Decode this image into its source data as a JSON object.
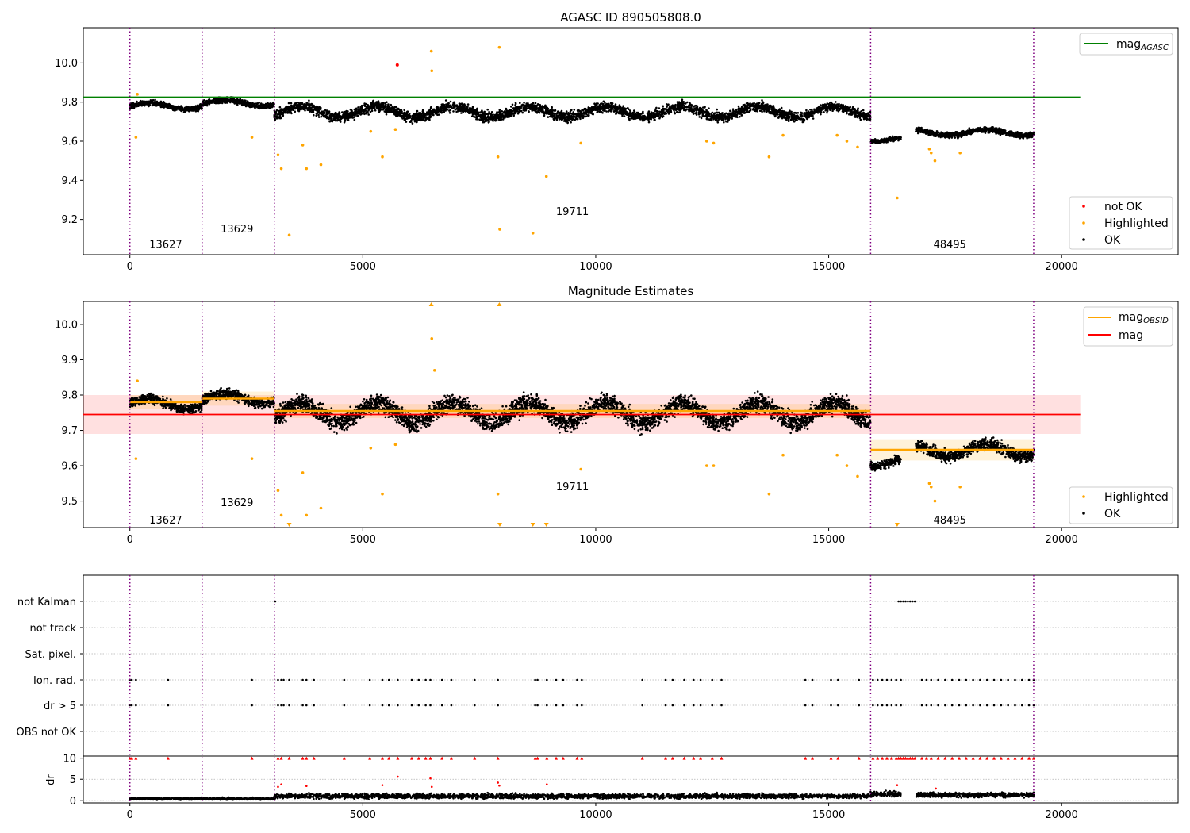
{
  "figure": {
    "top_title": "AGASC ID 890505808.0",
    "middle_title": "Magnitude Estimates"
  },
  "chart_data": [
    {
      "type": "scatter",
      "title": "AGASC ID 890505808.0",
      "xlim": [
        -1000,
        22500
      ],
      "ylim": [
        9.02,
        10.18
      ],
      "x_ticks": [
        "0",
        "5000",
        "10000",
        "15000",
        "20000"
      ],
      "y_ticks": [
        "9.2",
        "9.4",
        "9.6",
        "9.8",
        "10.0"
      ],
      "obs_boundaries": [
        0,
        1550,
        3100,
        15900,
        19400
      ],
      "obsid_labels": [
        {
          "text": "13627",
          "x": 770,
          "y": 9.07
        },
        {
          "text": "13629",
          "x": 2300,
          "y": 9.15
        },
        {
          "text": "19711",
          "x": 9500,
          "y": 9.24
        },
        {
          "text": "48495",
          "x": 17600,
          "y": 9.07
        }
      ],
      "reference_line": {
        "name": "mag_AGASC",
        "y": 9.825,
        "x_range": [
          -1000,
          20400
        ],
        "color": "#008000"
      },
      "series": [
        {
          "name": "not OK",
          "color": "#ff0000",
          "points": [
            [
              5740,
              9.99
            ]
          ]
        },
        {
          "name": "Highlighted",
          "color": "#ffa500",
          "points": [
            [
              130,
              9.62
            ],
            [
              160,
              9.84
            ],
            [
              2620,
              9.62
            ],
            [
              3180,
              9.53
            ],
            [
              3250,
              9.46
            ],
            [
              3420,
              9.12
            ],
            [
              3710,
              9.58
            ],
            [
              3790,
              9.46
            ],
            [
              4100,
              9.48
            ],
            [
              5170,
              9.65
            ],
            [
              5420,
              9.52
            ],
            [
              5700,
              9.66
            ],
            [
              6470,
              10.06
            ],
            [
              6480,
              9.96
            ],
            [
              7930,
              10.08
            ],
            [
              7900,
              9.52
            ],
            [
              7940,
              9.15
            ],
            [
              8650,
              9.13
            ],
            [
              8940,
              9.42
            ],
            [
              9680,
              9.59
            ],
            [
              12380,
              9.6
            ],
            [
              12530,
              9.59
            ],
            [
              13720,
              9.52
            ],
            [
              14020,
              9.63
            ],
            [
              15180,
              9.63
            ],
            [
              15390,
              9.6
            ],
            [
              15620,
              9.57
            ],
            [
              16470,
              9.31
            ],
            [
              17160,
              9.56
            ],
            [
              17200,
              9.54
            ],
            [
              17280,
              9.5
            ],
            [
              17820,
              9.54
            ]
          ]
        },
        {
          "name": "OK",
          "color": "#000000",
          "segments": [
            {
              "x": [
                0,
                1550
              ],
              "y": 9.78,
              "spread": 0.025
            },
            {
              "x": [
                1550,
                3100
              ],
              "y": 9.795,
              "spread": 0.025
            },
            {
              "x": [
                3100,
                15900
              ],
              "y": 9.75,
              "spread": 0.045
            },
            {
              "x": [
                15900,
                16550
              ],
              "y": 9.61,
              "spread": 0.02
            },
            {
              "x": [
                16870,
                19400
              ],
              "y": 9.645,
              "spread": 0.025
            }
          ]
        }
      ],
      "legend": [
        "mag_AGASC",
        "not OK",
        "Highlighted",
        "OK"
      ]
    },
    {
      "type": "scatter",
      "title": "Magnitude Estimates",
      "xlim": [
        -1000,
        22500
      ],
      "ylim": [
        9.425,
        10.065
      ],
      "x_ticks": [
        "0",
        "5000",
        "10000",
        "15000",
        "20000"
      ],
      "y_ticks": [
        "9.5",
        "9.6",
        "9.7",
        "9.8",
        "9.9",
        "10.0"
      ],
      "obs_boundaries": [
        0,
        1550,
        3100,
        15900,
        19400
      ],
      "obsid_labels": [
        {
          "text": "13627",
          "x": 770,
          "y": 9.445
        },
        {
          "text": "13629",
          "x": 2300,
          "y": 9.495
        },
        {
          "text": "19711",
          "x": 9500,
          "y": 9.54
        },
        {
          "text": "48495",
          "x": 17600,
          "y": 9.445
        }
      ],
      "mag": {
        "name": "mag",
        "y": 9.745,
        "band": [
          9.69,
          9.8
        ],
        "x_range": [
          -1000,
          20400
        ],
        "color": "#ff0000"
      },
      "mag_obsid": {
        "name": "mag_OBSID",
        "color": "#ffa500",
        "segments": [
          {
            "x": [
              0,
              1550
            ],
            "y": 9.78,
            "band": [
              9.76,
              9.8
            ]
          },
          {
            "x": [
              1550,
              3100
            ],
            "y": 9.79,
            "band": [
              9.77,
              9.81
            ]
          },
          {
            "x": [
              3100,
              15900
            ],
            "y": 9.755,
            "band": [
              9.735,
              9.775
            ]
          },
          {
            "x": [
              15900,
              19400
            ],
            "y": 9.645,
            "band": [
              9.615,
              9.675
            ]
          }
        ]
      },
      "series": [
        {
          "name": "Highlighted",
          "color": "#ffa500",
          "points": [
            [
              130,
              9.62
            ],
            [
              160,
              9.84
            ],
            [
              2620,
              9.62
            ],
            [
              3180,
              9.53
            ],
            [
              3250,
              9.46
            ],
            [
              3710,
              9.58
            ],
            [
              3790,
              9.46
            ],
            [
              4100,
              9.48
            ],
            [
              5170,
              9.65
            ],
            [
              5420,
              9.52
            ],
            [
              5700,
              9.66
            ],
            [
              6480,
              9.96
            ],
            [
              6540,
              9.87
            ],
            [
              7900,
              9.52
            ],
            [
              9680,
              9.59
            ],
            [
              12380,
              9.6
            ],
            [
              12530,
              9.6
            ],
            [
              13720,
              9.52
            ],
            [
              14020,
              9.63
            ],
            [
              15180,
              9.63
            ],
            [
              15390,
              9.6
            ],
            [
              15620,
              9.57
            ],
            [
              17160,
              9.55
            ],
            [
              17200,
              9.54
            ],
            [
              17280,
              9.5
            ],
            [
              17820,
              9.54
            ]
          ]
        },
        {
          "name": "Highlighted (out of range)",
          "color": "#ffa500",
          "up": [
            6470,
            7930
          ],
          "down": [
            3420,
            7940,
            8650,
            8940,
            16470
          ]
        },
        {
          "name": "OK",
          "color": "#000000",
          "segments": [
            {
              "x": [
                0,
                1550
              ],
              "y": 9.775,
              "spread": 0.025
            },
            {
              "x": [
                1550,
                3100
              ],
              "y": 9.79,
              "spread": 0.025
            },
            {
              "x": [
                3100,
                15900
              ],
              "y": 9.75,
              "spread": 0.045
            },
            {
              "x": [
                15900,
                16550
              ],
              "y": 9.61,
              "spread": 0.02
            },
            {
              "x": [
                16870,
                19400
              ],
              "y": 9.645,
              "spread": 0.03
            }
          ]
        }
      ],
      "legend": [
        "mag_OBSID",
        "mag",
        "Highlighted",
        "OK"
      ]
    },
    {
      "type": "scatter",
      "title": "",
      "xlim": [
        -1000,
        22500
      ],
      "x_ticks": [
        "0",
        "5000",
        "10000",
        "15000",
        "20000"
      ],
      "flag_rows": [
        "not Kalman",
        "not track",
        "Sat. pixel.",
        "Ion. rad.",
        "dr > 5",
        "OBS not OK"
      ],
      "flag_points": {
        "not Kalman": [
          3120,
          16500,
          16550,
          16600,
          16650,
          16700,
          16750,
          16800,
          16850
        ],
        "Ion. rad.": [
          0,
          40,
          130,
          820,
          2620,
          3180,
          3250,
          3300,
          3420,
          3710,
          3790,
          3950,
          4600,
          5150,
          5420,
          5560,
          5750,
          6050,
          6200,
          6350,
          6450,
          6700,
          6900,
          7400,
          7900,
          8700,
          8750,
          8950,
          9150,
          9300,
          9600,
          9700,
          11000,
          11500,
          11650,
          11900,
          12100,
          12250,
          12500,
          12700,
          14500,
          14650,
          15050,
          15200,
          15650,
          15950,
          16050,
          16150,
          16250,
          16350,
          16450,
          16550,
          17000,
          17100,
          17200,
          17350,
          17500,
          17650,
          17800,
          17950,
          18100,
          18250,
          18400,
          18550,
          18700,
          18850,
          19000,
          19150,
          19300,
          19400
        ],
        "dr > 5": [
          0,
          40,
          130,
          820,
          2620,
          3180,
          3250,
          3300,
          3420,
          3710,
          3790,
          3950,
          4600,
          5150,
          5420,
          5560,
          5750,
          6050,
          6200,
          6350,
          6450,
          6700,
          6900,
          7400,
          7900,
          8700,
          8750,
          8950,
          9150,
          9300,
          9600,
          9700,
          11000,
          11500,
          11650,
          11900,
          12100,
          12250,
          12500,
          12700,
          14500,
          14650,
          15050,
          15200,
          15650,
          15950,
          16050,
          16150,
          16250,
          16350,
          16450,
          16550,
          17000,
          17100,
          17200,
          17350,
          17500,
          17650,
          17800,
          17950,
          18100,
          18250,
          18400,
          18550,
          18700,
          18850,
          19000,
          19150,
          19300,
          19400
        ]
      },
      "dr_panel": {
        "ylabel": "dr",
        "ylim": [
          -0.6,
          10.5
        ],
        "y_ticks": [
          "0",
          "5",
          "10"
        ],
        "clipped_points": [
          0,
          40,
          130,
          820,
          2620,
          3180,
          3250,
          3420,
          3710,
          3790,
          3950,
          4600,
          5150,
          5420,
          5560,
          5750,
          6050,
          6200,
          6350,
          6450,
          6700,
          6900,
          7400,
          7900,
          8700,
          8750,
          8950,
          9150,
          9300,
          9600,
          9700,
          11000,
          11500,
          11650,
          11900,
          12100,
          12250,
          12500,
          12700,
          14500,
          14650,
          15050,
          15200,
          15650,
          15950,
          16050,
          16150,
          16250,
          16350,
          16450,
          16500,
          16550,
          16600,
          16650,
          16700,
          16750,
          16800,
          16850,
          17000,
          17100,
          17200,
          17350,
          17500,
          17650,
          17800,
          17950,
          18100,
          18250,
          18400,
          18550,
          18700,
          18850,
          19000,
          19150,
          19300,
          19400
        ],
        "mid_points": [
          [
            3180,
            3.2
          ],
          [
            3250,
            3.8
          ],
          [
            3790,
            3.4
          ],
          [
            5420,
            3.6
          ],
          [
            5750,
            5.6
          ],
          [
            6450,
            5.2
          ],
          [
            6480,
            3.2
          ],
          [
            7900,
            4.2
          ],
          [
            7930,
            3.5
          ],
          [
            8950,
            3.8
          ],
          [
            16470,
            3.6
          ],
          [
            17300,
            2.8
          ]
        ],
        "baseline_segments": [
          {
            "x": [
              0,
              3100
            ],
            "y": 0.4,
            "spread": 0.4
          },
          {
            "x": [
              3100,
              15900
            ],
            "y": 1.0,
            "spread": 0.9
          },
          {
            "x": [
              15900,
              16550
            ],
            "y": 1.5,
            "spread": 1.0
          },
          {
            "x": [
              16870,
              19400
            ],
            "y": 1.3,
            "spread": 0.9
          }
        ]
      }
    }
  ]
}
